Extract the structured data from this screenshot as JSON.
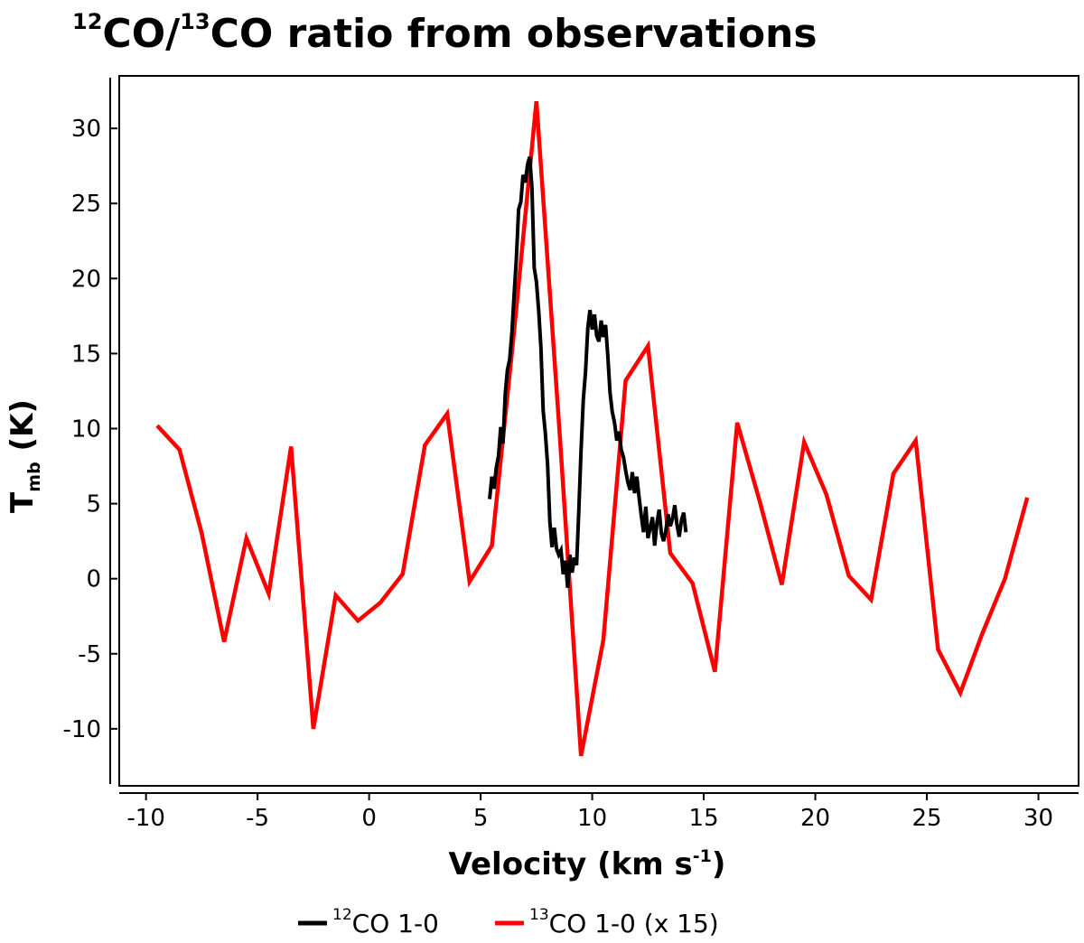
{
  "chart_data": {
    "type": "line",
    "title": {
      "sup1": "12",
      "part1": "CO/",
      "sup2": "13",
      "part2": "CO ratio from observations"
    },
    "xlabel": {
      "main": "Velocity (km s",
      "sup": "-1",
      "tail": ")"
    },
    "ylabel": {
      "main": "T",
      "sub": "mb",
      "tail": " (K)"
    },
    "xlim": [
      -11.2,
      31.8
    ],
    "ylim": [
      -13.8,
      33.5
    ],
    "xticks": [
      -10,
      -5,
      0,
      5,
      10,
      15,
      20,
      25,
      30
    ],
    "xtick_labels": [
      "-10",
      "-5",
      "0",
      "5",
      "10",
      "15",
      "20",
      "25",
      "30"
    ],
    "yticks": [
      -10,
      -5,
      0,
      5,
      10,
      15,
      20,
      25,
      30
    ],
    "ytick_labels": [
      "-10",
      "-5",
      "0",
      "5",
      "10",
      "15",
      "20",
      "25",
      "30"
    ],
    "series": [
      {
        "name": "12CO 1-0",
        "legend": {
          "sup": "12",
          "text": "CO 1-0"
        },
        "color": "#000000",
        "x": [
          5.4,
          5.5,
          5.6,
          5.7,
          5.8,
          5.9,
          6.0,
          6.1,
          6.2,
          6.3,
          6.4,
          6.5,
          6.6,
          6.7,
          6.8,
          6.9,
          7.0,
          7.1,
          7.2,
          7.3,
          7.4,
          7.5,
          7.6,
          7.7,
          7.8,
          7.9,
          8.0,
          8.1,
          8.2,
          8.3,
          8.4,
          8.5,
          8.6,
          8.7,
          8.8,
          8.9,
          9.0,
          9.1,
          9.2,
          9.3,
          9.4,
          9.5,
          9.6,
          9.7,
          9.8,
          9.9,
          10.0,
          10.1,
          10.2,
          10.3,
          10.4,
          10.5,
          10.6,
          10.7,
          10.8,
          10.9,
          11.0,
          11.1,
          11.2,
          11.3,
          11.4,
          11.5,
          11.6,
          11.7,
          11.8,
          11.9,
          12.0,
          12.1,
          12.2,
          12.3,
          12.4,
          12.5,
          12.6,
          12.7,
          12.8,
          12.9,
          13.0,
          13.1,
          13.2,
          13.3,
          13.4,
          13.5,
          13.6,
          13.7,
          13.8,
          13.9,
          14.0,
          14.1,
          14.2
        ],
        "y": [
          5.3,
          6.8,
          6.0,
          7.4,
          8.2,
          10.1,
          9.0,
          12.3,
          13.9,
          14.6,
          16.4,
          18.9,
          21.3,
          24.6,
          25.1,
          26.9,
          26.4,
          27.6,
          28.1,
          26.0,
          20.7,
          19.8,
          17.9,
          15.4,
          11.2,
          9.7,
          7.6,
          3.8,
          2.1,
          3.4,
          2.0,
          1.6,
          1.9,
          0.3,
          1.2,
          -0.6,
          1.6,
          0.4,
          1.4,
          0.9,
          4.6,
          8.5,
          11.9,
          13.8,
          16.7,
          17.9,
          16.6,
          17.6,
          16.2,
          15.8,
          17.2,
          16.1,
          16.9,
          14.8,
          12.4,
          11.1,
          10.4,
          9.2,
          9.8,
          8.6,
          8.1,
          7.2,
          6.4,
          5.9,
          7.1,
          5.7,
          6.8,
          5.4,
          4.2,
          3.1,
          4.8,
          2.7,
          3.4,
          4.1,
          2.2,
          3.7,
          4.6,
          3.0,
          2.5,
          3.2,
          4.3,
          3.5,
          4.0,
          4.9,
          3.6,
          2.8,
          3.9,
          4.4,
          3.1
        ]
      },
      {
        "name": "13CO 1-0 (x 15)",
        "legend": {
          "sup": "13",
          "text": "CO 1-0 (x 15)"
        },
        "color": "#ff0000",
        "x": [
          -9.5,
          -8.5,
          -7.5,
          -6.5,
          -5.5,
          -4.5,
          -3.5,
          -2.5,
          -1.5,
          -0.5,
          0.5,
          1.5,
          2.5,
          3.5,
          4.5,
          5.5,
          6.5,
          7.5,
          8.5,
          9.5,
          10.5,
          11.5,
          12.5,
          13.5,
          14.5,
          15.5,
          16.5,
          17.5,
          18.5,
          19.5,
          20.5,
          21.5,
          22.5,
          23.5,
          24.5,
          25.5,
          26.5,
          27.5,
          28.5,
          29.5
        ],
        "y": [
          10.2,
          8.6,
          3.0,
          -4.2,
          2.7,
          -1.0,
          8.8,
          -10.0,
          -1.1,
          -2.8,
          -1.6,
          0.3,
          8.9,
          11.0,
          -0.2,
          2.2,
          16.5,
          31.8,
          10.6,
          -11.8,
          -4.1,
          13.2,
          15.5,
          1.7,
          -0.3,
          -6.2,
          10.4,
          5.2,
          -0.4,
          9.1,
          5.6,
          0.2,
          -1.4,
          7.0,
          9.2,
          -4.7,
          -7.6,
          -3.6,
          0.0,
          5.4
        ]
      }
    ],
    "legend_position": "bottom-center"
  }
}
